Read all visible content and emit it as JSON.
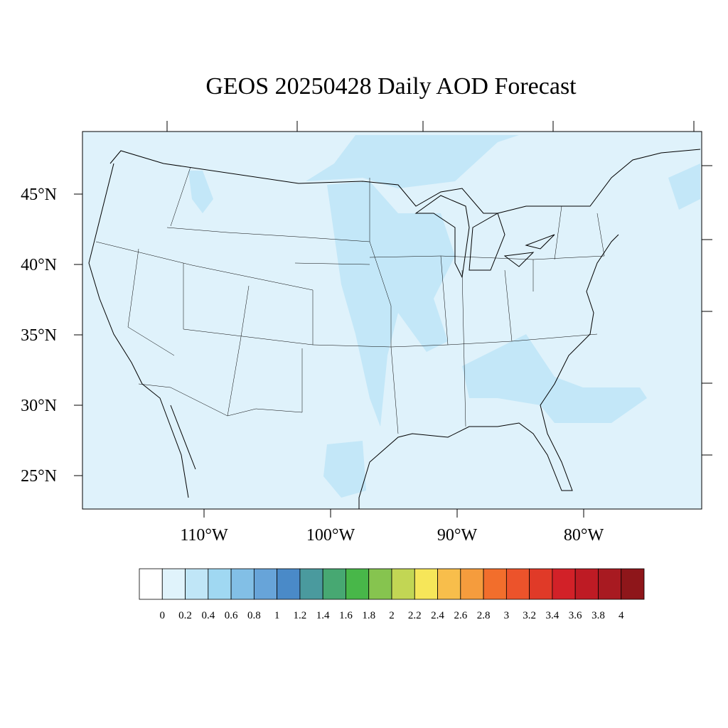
{
  "title": "GEOS 20250428 Daily AOD Forecast",
  "map": {
    "lat_labels": [
      "45°N",
      "40°N",
      "35°N",
      "30°N",
      "25°N"
    ],
    "lon_labels": [
      "110°W",
      "100°W",
      "90°W",
      "80°W"
    ]
  },
  "colorbar": {
    "levels": [
      0,
      0.2,
      0.4,
      0.6,
      0.8,
      1,
      1.2,
      1.4,
      1.6,
      1.8,
      2,
      2.2,
      2.4,
      2.6,
      2.8,
      3,
      3.2,
      3.4,
      3.6,
      3.8,
      4
    ],
    "colors": [
      "#ffffff",
      "#e0f3fb",
      "#c0e6f7",
      "#a0d8f2",
      "#82bfe6",
      "#67a4d9",
      "#4a8ac8",
      "#4a9a9e",
      "#47a872",
      "#48b749",
      "#86c44f",
      "#c2d654",
      "#f6e659",
      "#f8be4b",
      "#f59c3d",
      "#f26e2c",
      "#ec532b",
      "#e03a28",
      "#d22128",
      "#be1b24",
      "#a81a21",
      "#8e161a"
    ]
  }
}
